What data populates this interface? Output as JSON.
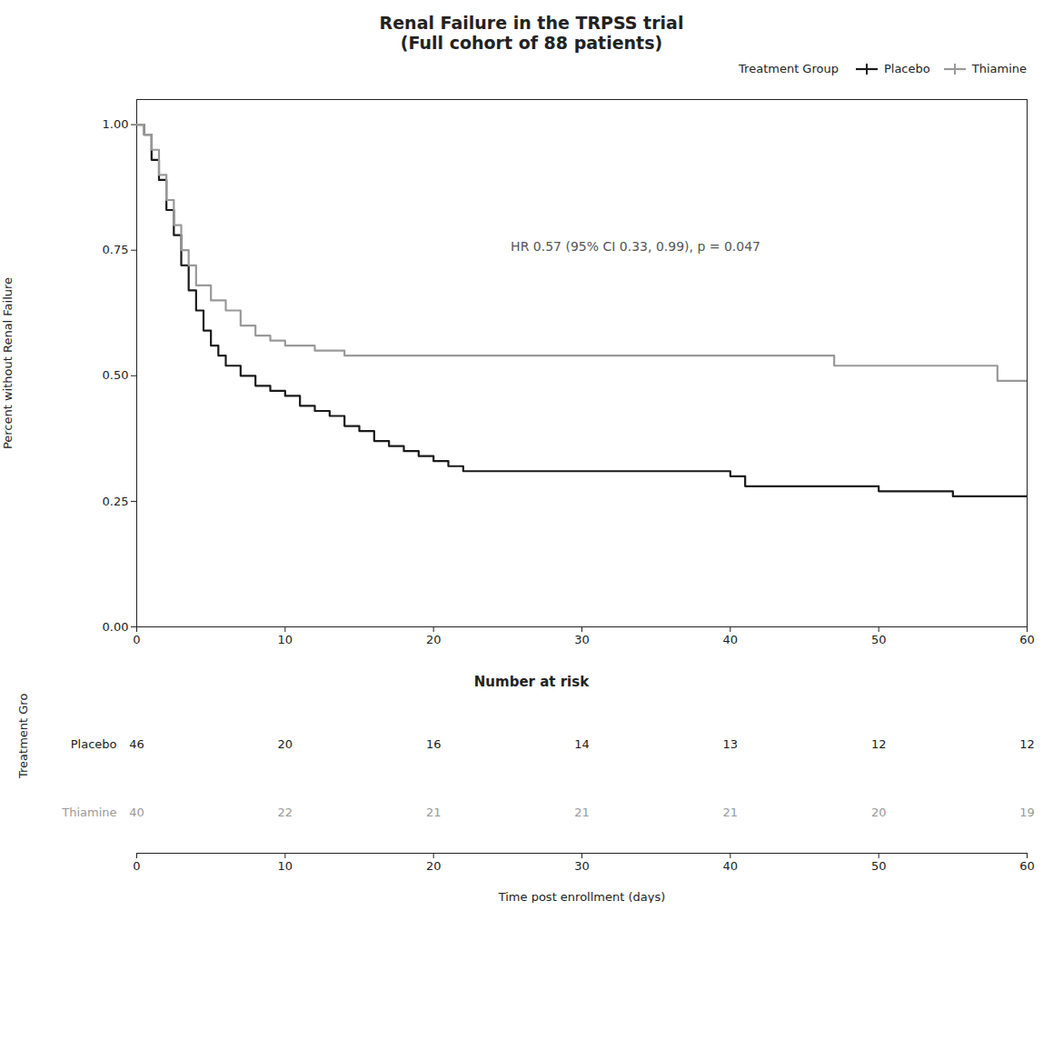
{
  "chart_data": [
    {
      "type": "line",
      "title": "Renal Failure in the TRPSS trial",
      "subtitle": "(Full cohort of 88 patients)",
      "ylabel": "Percent without Renal Failure",
      "annotation": "HR 0.57 (95% CI 0.33, 0.99), p = 0.047",
      "xlim": [
        0,
        60
      ],
      "ylim": [
        0.0,
        1.05
      ],
      "xticks": [
        0,
        10,
        20,
        30,
        40,
        50,
        60
      ],
      "yticks": [
        {
          "value": 0.0,
          "label": "0.00"
        },
        {
          "value": 0.25,
          "label": "0.25"
        },
        {
          "value": 0.5,
          "label": "0.50"
        },
        {
          "value": 0.75,
          "label": "0.75"
        },
        {
          "value": 1.0,
          "label": "1.00"
        }
      ],
      "grid": false,
      "legend": "upper right",
      "legend_title": "Treatment Group",
      "line_style": "step",
      "series": [
        {
          "name": "Placebo",
          "color": "#1a1a1a",
          "x": [
            0,
            0.5,
            1,
            1.5,
            2,
            2.5,
            3,
            3.5,
            4,
            4.5,
            5,
            5.5,
            6,
            7,
            8,
            9,
            10,
            11,
            12,
            13,
            14,
            15,
            16,
            17,
            18,
            19,
            20,
            21,
            22,
            25,
            28,
            30,
            35,
            40,
            41,
            43,
            45,
            50,
            55,
            58,
            60
          ],
          "values": [
            1.0,
            0.98,
            0.93,
            0.89,
            0.83,
            0.78,
            0.72,
            0.67,
            0.63,
            0.59,
            0.56,
            0.54,
            0.52,
            0.5,
            0.48,
            0.47,
            0.46,
            0.44,
            0.43,
            0.42,
            0.4,
            0.39,
            0.37,
            0.36,
            0.35,
            0.34,
            0.33,
            0.32,
            0.31,
            0.31,
            0.31,
            0.31,
            0.31,
            0.3,
            0.28,
            0.28,
            0.28,
            0.27,
            0.26,
            0.26,
            0.26
          ]
        },
        {
          "name": "Thiamine",
          "color": "#999999",
          "x": [
            0,
            0.5,
            1,
            1.5,
            2,
            2.5,
            3,
            3.5,
            4,
            5,
            6,
            7,
            8,
            9,
            10,
            12,
            14,
            16,
            18,
            20,
            25,
            28,
            30,
            35,
            40,
            45,
            47,
            50,
            55,
            58,
            60
          ],
          "values": [
            1.0,
            0.98,
            0.95,
            0.9,
            0.85,
            0.8,
            0.75,
            0.72,
            0.68,
            0.65,
            0.63,
            0.6,
            0.58,
            0.57,
            0.56,
            0.55,
            0.54,
            0.54,
            0.54,
            0.54,
            0.54,
            0.54,
            0.54,
            0.54,
            0.54,
            0.54,
            0.52,
            0.52,
            0.52,
            0.49,
            0.49
          ]
        }
      ]
    },
    {
      "type": "table",
      "title": "Number at risk",
      "xlabel": "Time post enrollment (days)",
      "ylabel": "Treatment Group",
      "xlim": [
        0,
        60
      ],
      "xticks": [
        0,
        10,
        20,
        30,
        40,
        50,
        60
      ],
      "x": [
        0,
        10,
        20,
        30,
        40,
        50,
        60
      ],
      "data_labels": true,
      "series": [
        {
          "name": "Placebo",
          "color": "#1a1a1a",
          "values": [
            46,
            20,
            16,
            14,
            13,
            12,
            12
          ]
        },
        {
          "name": "Thiamine",
          "color": "#999999",
          "values": [
            40,
            22,
            21,
            21,
            21,
            20,
            19
          ]
        }
      ]
    }
  ]
}
